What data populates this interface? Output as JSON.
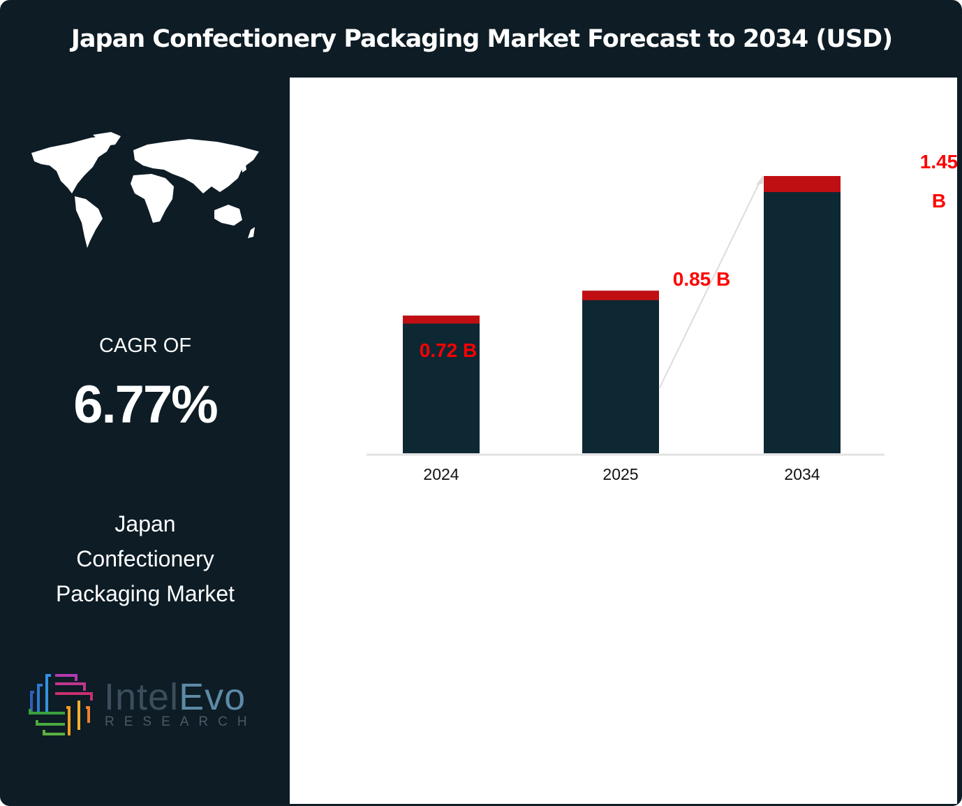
{
  "title": "Japan Confectionery Packaging Market Forecast to 2034 (USD)",
  "sidebar": {
    "map_icon": "world-map-icon",
    "cagr_label": "CAGR OF",
    "cagr_value": "6.77%",
    "market_lines": [
      "Japan",
      "Confectionery",
      "Packaging Market"
    ],
    "logo": {
      "name_part1": "Intel",
      "name_part2": "Evo",
      "subtitle": "RESEARCH"
    }
  },
  "colors": {
    "background": "#0d1c25",
    "bar": "#0e2833",
    "bar_cap": "#c00f12",
    "label": "#ff0000"
  },
  "chart_data": {
    "type": "bar",
    "categories": [
      "2024",
      "2025",
      "2034"
    ],
    "values": [
      0.72,
      0.85,
      1.45
    ],
    "data_labels": [
      "0.72 B",
      "0.85 B",
      "1.45 B"
    ],
    "ylim": [
      0,
      1.45
    ],
    "grid": false,
    "annotation": "growth arrow from 2025 to 2034"
  }
}
